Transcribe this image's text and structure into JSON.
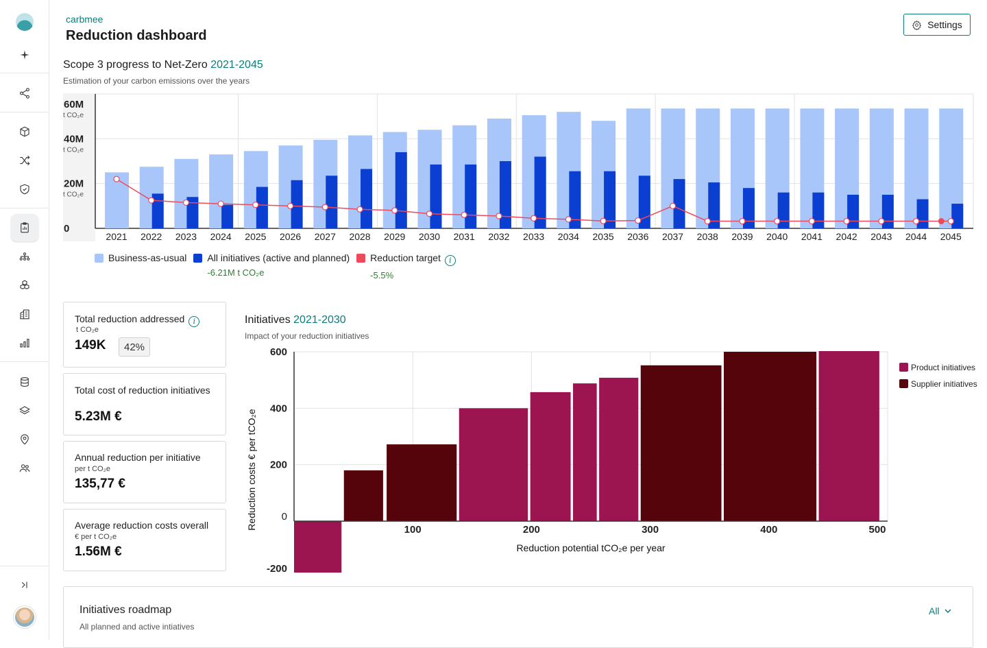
{
  "app": {
    "brand": "carbmee",
    "page_title": "Reduction dashboard",
    "settings_label": "Settings"
  },
  "sidebar": {
    "icons": [
      "sparkle-icon",
      "share-icon",
      "cube-icon",
      "shuffle-icon",
      "shield-icon",
      "clipboard-icon",
      "org-chart-icon",
      "boxes-icon",
      "building-icon",
      "bar-chart-icon",
      "database-icon",
      "layers-icon",
      "location-icon",
      "users-icon",
      "collapse-icon"
    ],
    "active": "clipboard-icon"
  },
  "scope3": {
    "title": "Scope 3 progress to Net-Zero",
    "range": "2021-2045",
    "subtitle": "Estimation of your carbon emissions over the years",
    "legend": {
      "bau": "Business-as-usual",
      "initiatives": "All initiatives (active and planned)",
      "initiatives_delta": "-6.21M t CO₂e",
      "target": "Reduction target",
      "target_delta": "-5.5%"
    }
  },
  "kpis": [
    {
      "title": "Total reduction addressed",
      "unit": "t CO₂e",
      "value": "149K",
      "badge": "42%",
      "info": true
    },
    {
      "title": "Total cost of reduction initiatives",
      "unit": "",
      "value": "5.23M €"
    },
    {
      "title": "Annual reduction per initiative",
      "unit": "per t CO₂e",
      "value": "135,77 €"
    },
    {
      "title": "Average reduction costs overall",
      "unit": "€ per t CO₂e",
      "value": "1.56M €"
    }
  ],
  "initiatives": {
    "title": "Initiatives",
    "range": "2021-2030",
    "subtitle": "Impact of your reduction initiatives"
  },
  "roadmap": {
    "title": "Initiatives roadmap",
    "subtitle": "All planned and active intiatives",
    "filter": "All"
  },
  "colors": {
    "accent": "#0b7d7d",
    "bau": "#a8c6fa",
    "initiatives": "#0a3fd1",
    "target": "#ef4a5b",
    "product": "#9c1550",
    "supplier": "#54040a",
    "positive": "#2e7d32"
  },
  "chart_data": [
    {
      "type": "bar",
      "title": "Scope 3 progress to Net-Zero",
      "categories": [
        "2021",
        "2022",
        "2023",
        "2024",
        "2025",
        "2026",
        "2027",
        "2028",
        "2029",
        "2030",
        "2031",
        "2032",
        "2033",
        "2034",
        "2035",
        "2036",
        "2037",
        "2038",
        "2039",
        "2040",
        "2041",
        "2042",
        "2043",
        "2044",
        "2045"
      ],
      "y_ticks": [
        {
          "value": 0,
          "label": "0",
          "unit": ""
        },
        {
          "value": 20,
          "label": "20M",
          "unit": "t CO₂e"
        },
        {
          "value": 40,
          "label": "40M",
          "unit": "t CO₂e"
        },
        {
          "value": 60,
          "label": "60M",
          "unit": "t CO₂e"
        }
      ],
      "ylim": [
        0,
        60
      ],
      "series": [
        {
          "name": "Business-as-usual",
          "type": "bar",
          "values": [
            25,
            27.5,
            31,
            33,
            34.5,
            37,
            39.5,
            41.5,
            43,
            44,
            46,
            49,
            50.5,
            52,
            48,
            53.5,
            53.5,
            53.5,
            53.5,
            53.5,
            53.5,
            53.5,
            53.5,
            53.5,
            53.5
          ]
        },
        {
          "name": "All initiatives (active and planned)",
          "type": "bar",
          "values": [
            0,
            15.5,
            14,
            10.5,
            18.5,
            21.5,
            23.5,
            26.5,
            34,
            28.5,
            28.5,
            30,
            32,
            25.5,
            25.5,
            23.5,
            22,
            20.5,
            18,
            16,
            16,
            15,
            15,
            13,
            11
          ]
        },
        {
          "name": "Reduction target",
          "type": "line",
          "values": [
            22,
            12.5,
            11.5,
            11,
            10.5,
            10,
            9.5,
            8.5,
            8,
            6.5,
            6,
            5.5,
            4.5,
            4,
            3.3,
            3.5,
            10,
            3.2,
            3.2,
            3.2,
            3.2,
            3.2,
            3.2,
            3.2,
            3.2
          ]
        }
      ],
      "grid": true
    },
    {
      "type": "bar",
      "title": "Initiatives",
      "xlabel": "Reduction potential tCO₂e per year",
      "ylabel": "Reduction costs € per tCO₂e",
      "xlim": [
        0,
        500
      ],
      "ylim": [
        -200,
        600
      ],
      "x_ticks": [
        100,
        200,
        300,
        400,
        500
      ],
      "y_ticks": [
        -200,
        0,
        200,
        400,
        600
      ],
      "legend": [
        "Product initiatives",
        "Supplier initiatives"
      ],
      "legend_position": "right",
      "grid": true,
      "bars": [
        {
          "x0": 0,
          "x1": 40,
          "value": -200,
          "series": "Product initiatives"
        },
        {
          "x0": 42,
          "x1": 75,
          "value": 180,
          "series": "Supplier initiatives"
        },
        {
          "x0": 78,
          "x1": 137,
          "value": 272,
          "series": "Supplier initiatives"
        },
        {
          "x0": 139,
          "x1": 197,
          "value": 400,
          "series": "Product initiatives"
        },
        {
          "x0": 199,
          "x1": 233,
          "value": 457,
          "series": "Product initiatives"
        },
        {
          "x0": 235,
          "x1": 255,
          "value": 488,
          "series": "Product initiatives"
        },
        {
          "x0": 257,
          "x1": 290,
          "value": 508,
          "series": "Product initiatives"
        },
        {
          "x0": 292,
          "x1": 360,
          "value": 552,
          "series": "Supplier initiatives"
        },
        {
          "x0": 362,
          "x1": 440,
          "value": 600,
          "series": "Supplier initiatives"
        },
        {
          "x0": 442,
          "x1": 493,
          "value": 640,
          "series": "Product initiatives"
        }
      ]
    }
  ]
}
